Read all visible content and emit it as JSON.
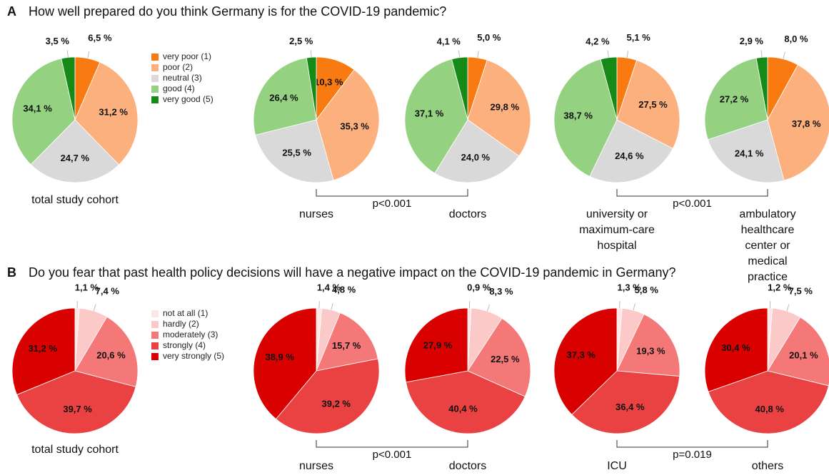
{
  "chart_data": [
    {
      "type": "pie",
      "label": "A",
      "title": "How well prepared do you think Germany is for the COVID-19 pandemic?",
      "categories": [
        "very poor (1)",
        "poor (2)",
        "neutral (3)",
        "good (4)",
        "very good (5)"
      ],
      "colors": [
        "#f97a10",
        "#fcb07e",
        "#d9d9d9",
        "#94d181",
        "#168a16"
      ],
      "pies": [
        {
          "caption": "total study cohort",
          "values": [
            6.5,
            31.2,
            24.7,
            34.1,
            3.5
          ],
          "value_labels": [
            "6,5 %",
            "31,2 %",
            "24,7 %",
            "34,1 %",
            "3,5 %"
          ]
        },
        {
          "caption": "nurses",
          "values": [
            10.3,
            35.3,
            25.5,
            26.4,
            2.5
          ],
          "value_labels": [
            "10,3 %",
            "35,3 %",
            "25,5 %",
            "26,4 %",
            "2,5 %"
          ]
        },
        {
          "caption": "doctors",
          "values": [
            5.0,
            29.8,
            24.0,
            37.1,
            4.1
          ],
          "value_labels": [
            "5,0 %",
            "29,8 %",
            "24,0 %",
            "37,1 %",
            "4,1 %"
          ]
        },
        {
          "caption": "university or\nmaximum-care\nhospital",
          "values": [
            5.1,
            27.5,
            24.6,
            38.7,
            4.2
          ],
          "value_labels": [
            "5,1 %",
            "27,5 %",
            "24,6 %",
            "38,7 %",
            "4,2 %"
          ]
        },
        {
          "caption": "ambulatory\nhealthcare center or\nmedical practice",
          "values": [
            8.0,
            37.8,
            24.1,
            27.2,
            2.9
          ],
          "value_labels": [
            "8,0 %",
            "37,8 %",
            "24,1 %",
            "27,2 %",
            "2,9 %"
          ]
        }
      ],
      "annotations": [
        "p<0.001",
        "p<0.001"
      ]
    },
    {
      "type": "pie",
      "label": "B",
      "title": "Do you fear that past health policy decisions will have a negative impact on the COVID-19 pandemic in Germany?",
      "categories": [
        "not at all (1)",
        "hardly (2)",
        "moderately (3)",
        "strongly (4)",
        "very strongly (5)"
      ],
      "colors": [
        "#fde6e6",
        "#fcc9c9",
        "#f47878",
        "#ea4242",
        "#d90000"
      ],
      "pies": [
        {
          "caption": "total study cohort",
          "values": [
            1.1,
            7.4,
            20.6,
            39.7,
            31.2
          ],
          "value_labels": [
            "1,1 %",
            "7,4 %",
            "20,6 %",
            "39,7 %",
            "31,2 %"
          ]
        },
        {
          "caption": "nurses",
          "values": [
            1.4,
            4.8,
            15.7,
            39.2,
            38.9
          ],
          "value_labels": [
            "1,4 %",
            "4,8 %",
            "15,7 %",
            "39,2 %",
            "38,9 %"
          ]
        },
        {
          "caption": "doctors",
          "values": [
            0.9,
            8.3,
            22.5,
            40.4,
            27.9
          ],
          "value_labels": [
            "0,9 %",
            "8,3 %",
            "22,5 %",
            "40,4 %",
            "27,9 %"
          ]
        },
        {
          "caption": "ICU",
          "values": [
            1.3,
            5.8,
            19.3,
            36.4,
            37.3
          ],
          "value_labels": [
            "1,3 %",
            "5,8 %",
            "19,3 %",
            "36,4 %",
            "37,3 %"
          ]
        },
        {
          "caption": "others",
          "values": [
            1.2,
            7.5,
            20.1,
            40.8,
            30.4
          ],
          "value_labels": [
            "1,2 %",
            "7,5 %",
            "20,1 %",
            "40,8 %",
            "30,4 %"
          ]
        }
      ],
      "annotations": [
        "p<0.001",
        "p=0.019"
      ]
    }
  ]
}
